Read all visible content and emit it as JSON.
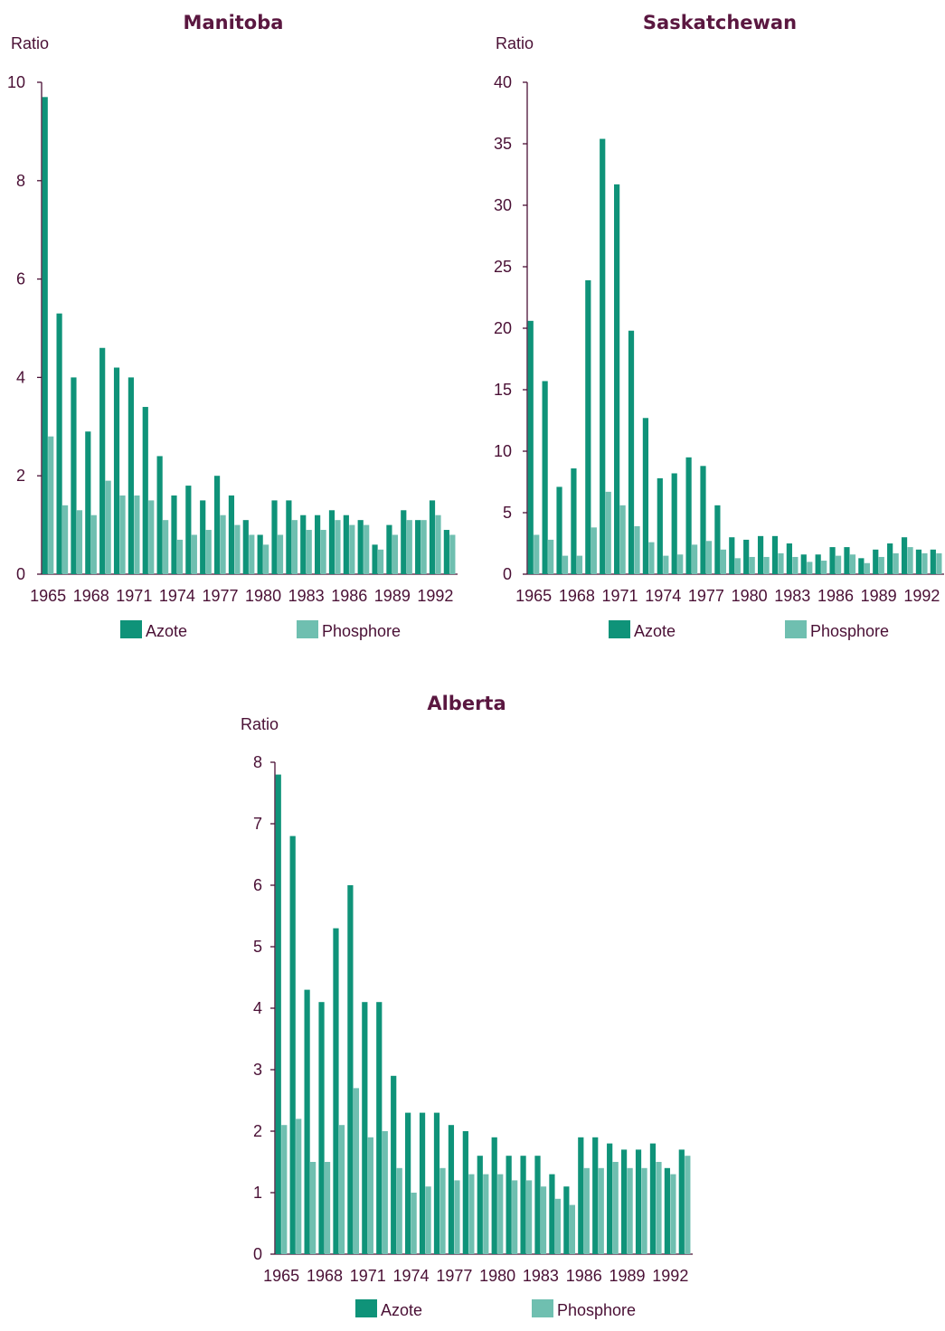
{
  "colors": {
    "azote": "#0f9379",
    "phosphore": "#6fbfb0",
    "text": "#4a1035",
    "title": "#5a1740"
  },
  "chart_data": [
    {
      "type": "bar",
      "title": "Manitoba",
      "ylabel": "Ratio",
      "xlabel": "",
      "ylim": [
        0,
        10
      ],
      "yticks": [
        0,
        2,
        4,
        6,
        8,
        10
      ],
      "xtick_labels": [
        "1965",
        "1968",
        "1971",
        "1974",
        "1977",
        "1980",
        "1983",
        "1986",
        "1989",
        "1992"
      ],
      "categories": [
        1965,
        1966,
        1967,
        1968,
        1969,
        1970,
        1971,
        1972,
        1973,
        1974,
        1975,
        1976,
        1977,
        1978,
        1979,
        1980,
        1981,
        1982,
        1983,
        1984,
        1985,
        1986,
        1987,
        1988,
        1989,
        1990,
        1991,
        1992,
        1993
      ],
      "series": [
        {
          "name": "Azote",
          "values": [
            9.7,
            5.3,
            4.0,
            2.9,
            4.6,
            4.2,
            4.0,
            3.4,
            2.4,
            1.6,
            1.8,
            1.5,
            2.0,
            1.6,
            1.1,
            0.8,
            1.5,
            1.5,
            1.2,
            1.2,
            1.3,
            1.2,
            1.1,
            0.6,
            1.0,
            1.3,
            1.1,
            1.5,
            0.9
          ]
        },
        {
          "name": "Phosphore",
          "values": [
            2.8,
            1.4,
            1.3,
            1.2,
            1.9,
            1.6,
            1.6,
            1.5,
            1.1,
            0.7,
            0.8,
            0.9,
            1.2,
            1.0,
            0.8,
            0.6,
            0.8,
            1.1,
            0.9,
            0.9,
            1.1,
            1.0,
            1.0,
            0.5,
            0.8,
            1.1,
            1.1,
            1.2,
            0.8
          ]
        }
      ],
      "legend": [
        "Azote",
        "Phosphore"
      ],
      "legend_position": "bottom"
    },
    {
      "type": "bar",
      "title": "Saskatchewan",
      "ylabel": "Ratio",
      "xlabel": "",
      "ylim": [
        0,
        40
      ],
      "yticks": [
        0,
        5,
        10,
        15,
        20,
        25,
        30,
        35,
        40
      ],
      "xtick_labels": [
        "1965",
        "1968",
        "1971",
        "1974",
        "1977",
        "1980",
        "1983",
        "1986",
        "1989",
        "1992"
      ],
      "categories": [
        1965,
        1966,
        1967,
        1968,
        1969,
        1970,
        1971,
        1972,
        1973,
        1974,
        1975,
        1976,
        1977,
        1978,
        1979,
        1980,
        1981,
        1982,
        1983,
        1984,
        1985,
        1986,
        1987,
        1988,
        1989,
        1990,
        1991,
        1992,
        1993
      ],
      "series": [
        {
          "name": "Azote",
          "values": [
            20.6,
            15.7,
            7.1,
            8.6,
            23.9,
            35.4,
            31.7,
            19.8,
            12.7,
            7.8,
            8.2,
            9.5,
            8.8,
            5.6,
            3.0,
            2.8,
            3.1,
            3.1,
            2.5,
            1.6,
            1.6,
            2.2,
            2.2,
            1.3,
            2.0,
            2.5,
            3.0,
            2.0,
            2.0
          ]
        },
        {
          "name": "Phosphore",
          "values": [
            3.2,
            2.8,
            1.5,
            1.5,
            3.8,
            6.7,
            5.6,
            3.9,
            2.6,
            1.5,
            1.6,
            2.4,
            2.7,
            2.0,
            1.3,
            1.4,
            1.4,
            1.7,
            1.4,
            1.0,
            1.1,
            1.5,
            1.6,
            0.9,
            1.4,
            1.7,
            2.2,
            1.7,
            1.7
          ]
        }
      ],
      "legend": [
        "Azote",
        "Phosphore"
      ],
      "legend_position": "bottom"
    },
    {
      "type": "bar",
      "title": "Alberta",
      "ylabel": "Ratio",
      "xlabel": "",
      "ylim": [
        0,
        8
      ],
      "yticks": [
        0,
        1,
        2,
        3,
        4,
        5,
        6,
        7,
        8
      ],
      "xtick_labels": [
        "1965",
        "1968",
        "1971",
        "1974",
        "1977",
        "1980",
        "1983",
        "1986",
        "1989",
        "1992"
      ],
      "categories": [
        1965,
        1966,
        1967,
        1968,
        1969,
        1970,
        1971,
        1972,
        1973,
        1974,
        1975,
        1976,
        1977,
        1978,
        1979,
        1980,
        1981,
        1982,
        1983,
        1984,
        1985,
        1986,
        1987,
        1988,
        1989,
        1990,
        1991,
        1992,
        1993
      ],
      "series": [
        {
          "name": "Azote",
          "values": [
            7.8,
            6.8,
            4.3,
            4.1,
            5.3,
            6.0,
            4.1,
            4.1,
            2.9,
            2.3,
            2.3,
            2.3,
            2.1,
            2.0,
            1.6,
            1.9,
            1.6,
            1.6,
            1.6,
            1.3,
            1.1,
            1.9,
            1.9,
            1.8,
            1.7,
            1.7,
            1.8,
            1.4,
            1.7
          ]
        },
        {
          "name": "Phosphore",
          "values": [
            2.1,
            2.2,
            1.5,
            1.5,
            2.1,
            2.7,
            1.9,
            2.0,
            1.4,
            1.0,
            1.1,
            1.4,
            1.2,
            1.3,
            1.3,
            1.3,
            1.2,
            1.2,
            1.1,
            0.9,
            0.8,
            1.4,
            1.4,
            1.5,
            1.4,
            1.4,
            1.5,
            1.3,
            1.6
          ]
        }
      ],
      "legend": [
        "Azote",
        "Phosphore"
      ],
      "legend_position": "bottom"
    }
  ]
}
